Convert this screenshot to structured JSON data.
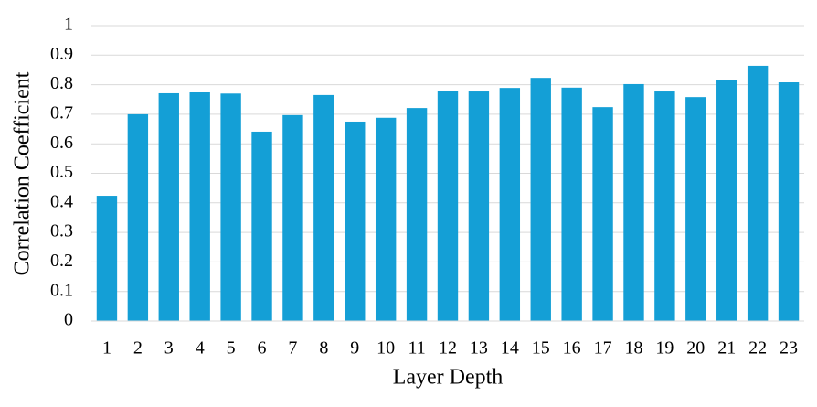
{
  "chart_data": {
    "type": "bar",
    "x_label": "Layer Depth",
    "y_label": "Correlation Coefficient",
    "categories": [
      "1",
      "2",
      "3",
      "4",
      "5",
      "6",
      "7",
      "8",
      "9",
      "10",
      "11",
      "12",
      "13",
      "14",
      "15",
      "16",
      "17",
      "18",
      "19",
      "20",
      "21",
      "22",
      "23"
    ],
    "values": [
      0.424,
      0.7,
      0.771,
      0.774,
      0.77,
      0.641,
      0.697,
      0.765,
      0.675,
      0.688,
      0.721,
      0.78,
      0.777,
      0.789,
      0.823,
      0.79,
      0.724,
      0.802,
      0.777,
      0.758,
      0.817,
      0.864,
      0.808
    ],
    "color": "#149fd6",
    "ylim": [
      0,
      1
    ],
    "yticks": [
      0,
      0.1,
      0.2,
      0.3,
      0.4,
      0.5,
      0.6,
      0.7,
      0.8,
      0.9,
      1
    ],
    "grid": true
  }
}
